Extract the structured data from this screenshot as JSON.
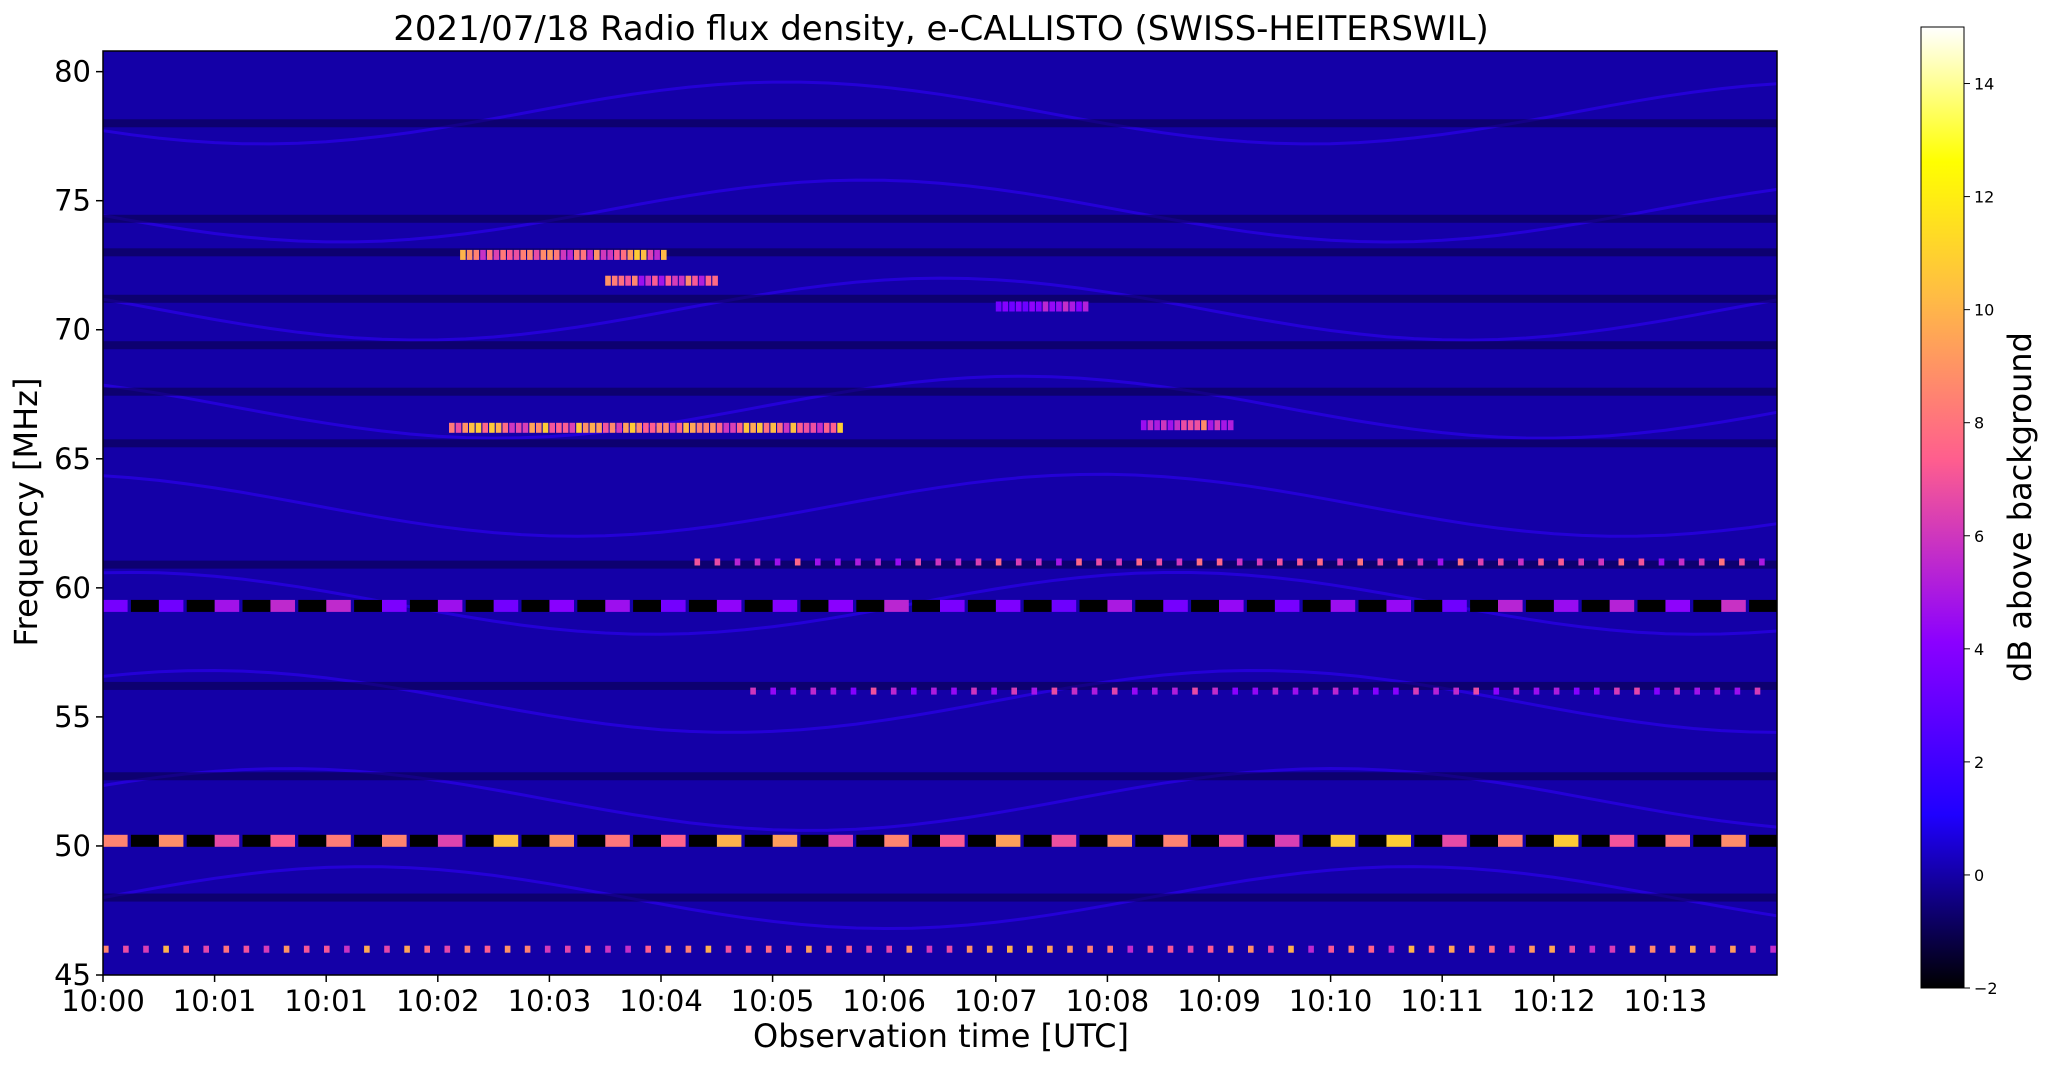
{
  "chart_data": {
    "type": "heatmap",
    "title": "2021/07/18  Radio flux density, e-CALLISTO (SWISS-HEITERSWIL)",
    "xlabel": "Observation time [UTC]",
    "ylabel": "Frequency [MHz]",
    "x_tick_labels": [
      "10:00",
      "10:01",
      "10:01",
      "10:02",
      "10:03",
      "10:04",
      "10:05",
      "10:06",
      "10:07",
      "10:08",
      "10:09",
      "10:10",
      "10:11",
      "10:12",
      "10:13"
    ],
    "xlim_minutes": [
      0,
      15
    ],
    "y_ticks": [
      45,
      50,
      55,
      60,
      65,
      70,
      75,
      80
    ],
    "ylim": [
      45,
      80.8
    ],
    "colorbar": {
      "label": "dB above background",
      "ticks": [
        -2,
        0,
        2,
        4,
        6,
        8,
        10,
        12,
        14
      ],
      "range": [
        -2,
        15
      ],
      "colormap": "gnuplot2",
      "colors": [
        "#000000",
        "#1f00ff",
        "#8b00ff",
        "#ff5e8e",
        "#ffbc44",
        "#ffff00",
        "#ffffff"
      ]
    },
    "background_level_db": 0,
    "features": [
      {
        "name": "band",
        "freq_mhz": 50.2,
        "level_db": 11,
        "pattern": "dashed"
      },
      {
        "name": "band",
        "freq_mhz": 46.0,
        "level_db": 10,
        "pattern": "dotted"
      },
      {
        "name": "band",
        "freq_mhz": 59.3,
        "level_db": 6,
        "pattern": "dashed"
      },
      {
        "name": "band",
        "freq_mhz": 61.0,
        "level_db": 8,
        "pattern": "dotted",
        "start_minute": 5.3
      },
      {
        "name": "band",
        "freq_mhz": 56.0,
        "level_db": 7,
        "pattern": "dotted",
        "start_minute": 5.8
      },
      {
        "name": "burst",
        "freq_mhz": 66.2,
        "level_db": 11,
        "start_minute": 3.1,
        "end_minute": 6.6
      },
      {
        "name": "burst",
        "freq_mhz": 72.9,
        "level_db": 11,
        "start_minute": 3.2,
        "end_minute": 5.0
      },
      {
        "name": "burst",
        "freq_mhz": 71.9,
        "level_db": 9,
        "start_minute": 4.5,
        "end_minute": 5.5
      },
      {
        "name": "burst",
        "freq_mhz": 66.3,
        "level_db": 9,
        "start_minute": 9.3,
        "end_minute": 10.1
      },
      {
        "name": "burst",
        "freq_mhz": 70.9,
        "level_db": 6,
        "start_minute": 8.0,
        "end_minute": 8.8
      }
    ]
  }
}
